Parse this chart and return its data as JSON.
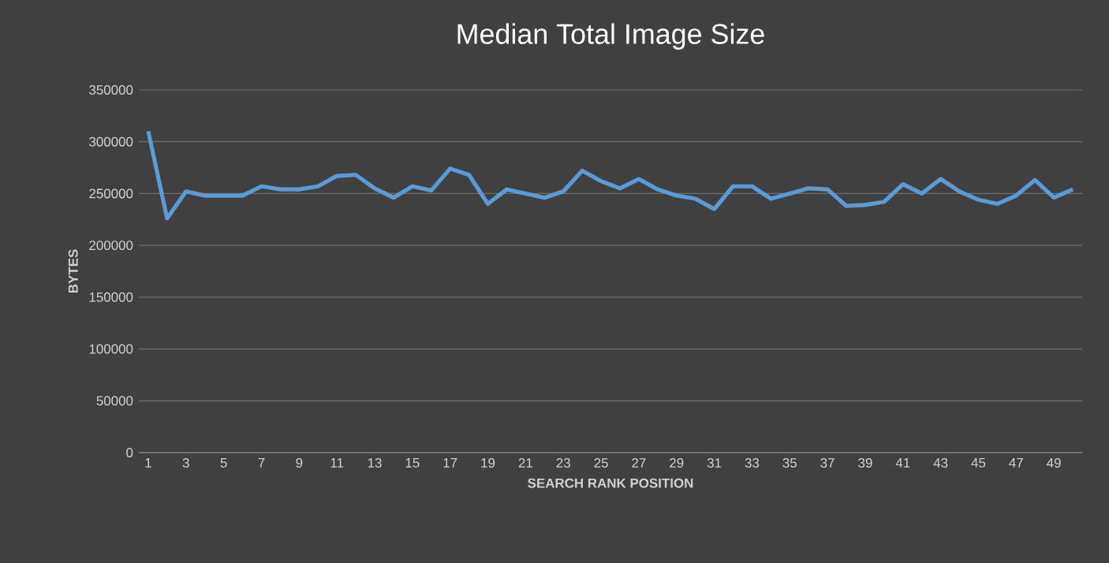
{
  "chart_data": {
    "type": "line",
    "title": "Median Total Image Size",
    "xlabel": "SEARCH RANK POSITION",
    "ylabel": "BYTES",
    "x": [
      1,
      2,
      3,
      4,
      5,
      6,
      7,
      8,
      9,
      10,
      11,
      12,
      13,
      14,
      15,
      16,
      17,
      18,
      19,
      20,
      21,
      22,
      23,
      24,
      25,
      26,
      27,
      28,
      29,
      30,
      31,
      32,
      33,
      34,
      35,
      36,
      37,
      38,
      39,
      40,
      41,
      42,
      43,
      44,
      45,
      46,
      47,
      48,
      49,
      50
    ],
    "series": [
      {
        "color": "#5b9bd5",
        "values": [
          310000,
          226000,
          252000,
          248000,
          248000,
          248000,
          257000,
          254000,
          254000,
          257000,
          267000,
          268000,
          255000,
          246000,
          257000,
          253000,
          274000,
          268000,
          240000,
          254000,
          250000,
          246000,
          252000,
          272000,
          262000,
          255000,
          264000,
          254000,
          248000,
          245000,
          235000,
          257000,
          257000,
          245000,
          250000,
          255000,
          254000,
          238000,
          239000,
          242000,
          259000,
          250000,
          264000,
          252000,
          244000,
          240000,
          248000,
          263000,
          246000,
          254000
        ]
      }
    ],
    "xlim": [
      0.5,
      50.5
    ],
    "xticks": [
      1,
      3,
      5,
      7,
      9,
      11,
      13,
      15,
      17,
      19,
      21,
      23,
      25,
      27,
      29,
      31,
      33,
      35,
      37,
      39,
      41,
      43,
      45,
      47,
      49
    ],
    "ylim": [
      0,
      350000
    ],
    "yticks": [
      0,
      50000,
      100000,
      150000,
      200000,
      250000,
      300000,
      350000
    ],
    "grid": "y",
    "marker": "none",
    "line_style": "solid"
  }
}
